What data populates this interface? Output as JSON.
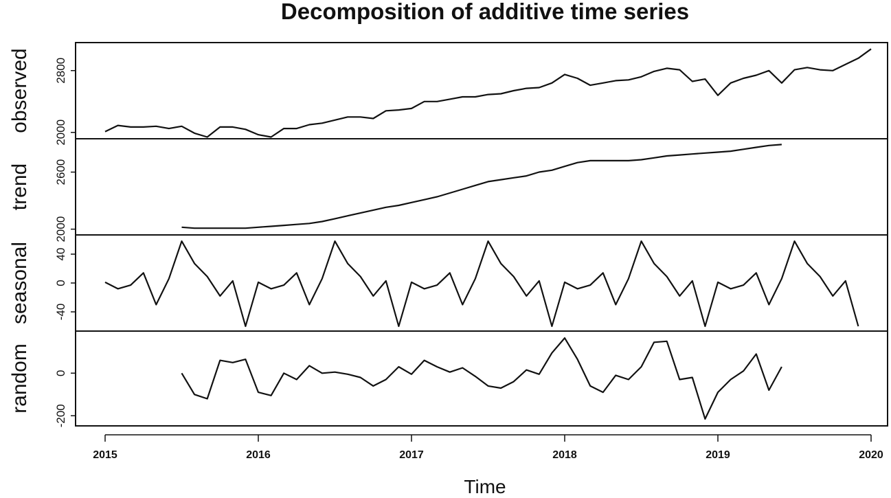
{
  "chart_data": {
    "type": "line",
    "title": "Decomposition of additive time series",
    "xlabel": "Time",
    "x_start": 2015,
    "frequency": 12,
    "xlim": [
      2015,
      2020
    ],
    "xticks": [
      2015,
      2016,
      2017,
      2018,
      2019,
      2020
    ],
    "panels": [
      {
        "key": "observed",
        "ylabel": "observed",
        "ylim": [
          1980,
          3100
        ],
        "yticks": [
          2000,
          2800
        ],
        "start_index": 0,
        "values": [
          2010,
          2090,
          2070,
          2070,
          2080,
          2050,
          2080,
          1990,
          1940,
          2070,
          2070,
          2040,
          1970,
          1940,
          2050,
          2050,
          2100,
          2120,
          2160,
          2200,
          2200,
          2180,
          2280,
          2290,
          2310,
          2400,
          2400,
          2430,
          2460,
          2460,
          2490,
          2500,
          2540,
          2570,
          2580,
          2640,
          2750,
          2700,
          2610,
          2640,
          2670,
          2680,
          2720,
          2790,
          2830,
          2810,
          2660,
          2690,
          2480,
          2640,
          2700,
          2740,
          2800,
          2640,
          2810,
          2840,
          2810,
          2800,
          2880,
          2960,
          3080
        ]
      },
      {
        "key": "trend",
        "ylabel": "trend",
        "ylim": [
          1990,
          2900
        ],
        "yticks": [
          2000,
          2600
        ],
        "start_index": 6,
        "values": [
          2020,
          2010,
          2010,
          2010,
          2010,
          2010,
          2020,
          2030,
          2040,
          2050,
          2060,
          2080,
          2110,
          2140,
          2170,
          2200,
          2230,
          2250,
          2280,
          2310,
          2340,
          2380,
          2420,
          2460,
          2500,
          2520,
          2540,
          2560,
          2600,
          2620,
          2660,
          2700,
          2720,
          2720,
          2720,
          2720,
          2730,
          2750,
          2770,
          2780,
          2790,
          2800,
          2810,
          2820,
          2840,
          2860,
          2880,
          2890
        ]
      },
      {
        "key": "seasonal",
        "ylabel": "seasonal",
        "ylim": [
          -60,
          60
        ],
        "yticks": [
          -40,
          0,
          40
        ],
        "start_index": 0,
        "values": [
          1,
          -8,
          -3,
          14,
          -30,
          6,
          58,
          27,
          9,
          -18,
          3,
          -60,
          1,
          -8,
          -3,
          14,
          -30,
          6,
          58,
          27,
          9,
          -18,
          3,
          -60,
          1,
          -8,
          -3,
          14,
          -30,
          6,
          58,
          27,
          9,
          -18,
          3,
          -60,
          1,
          -8,
          -3,
          14,
          -30,
          6,
          58,
          27,
          9,
          -18,
          3,
          -60,
          1,
          -8,
          -3,
          14,
          -30,
          6,
          58,
          27,
          9,
          -18,
          3,
          -60
        ]
      },
      {
        "key": "random",
        "ylabel": "random",
        "ylim": [
          -225,
          175
        ],
        "yticks": [
          -200,
          0
        ],
        "start_index": 6,
        "values": [
          0,
          -100,
          -120,
          60,
          50,
          65,
          -90,
          -105,
          0,
          -30,
          35,
          0,
          5,
          -5,
          -20,
          -60,
          -30,
          30,
          -5,
          60,
          30,
          5,
          25,
          -15,
          -60,
          -70,
          -40,
          15,
          -5,
          95,
          165,
          65,
          -60,
          -90,
          -10,
          -30,
          30,
          145,
          150,
          -30,
          -20,
          -215,
          -90,
          -30,
          10,
          90,
          -80,
          30
        ]
      }
    ]
  }
}
